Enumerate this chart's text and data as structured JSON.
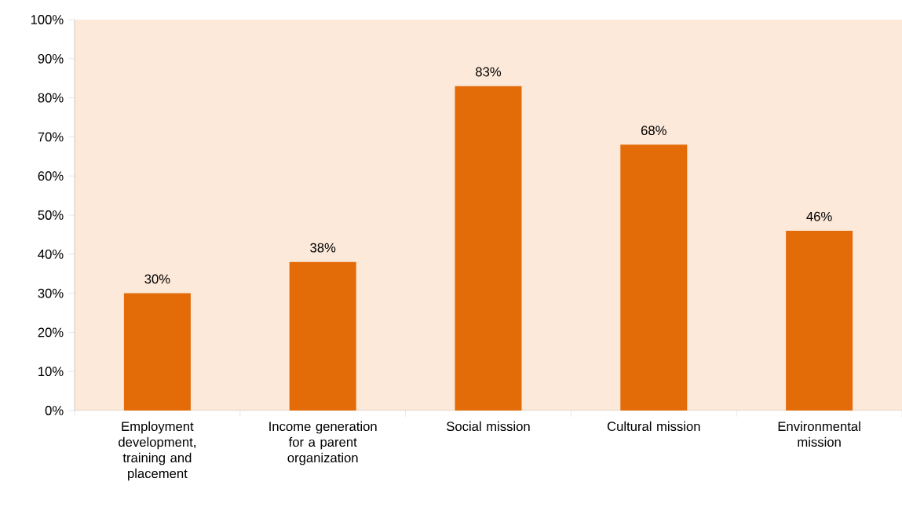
{
  "chart_data": {
    "type": "bar",
    "categories": [
      "Employment development, training and placement",
      "Income generation for a parent organization",
      "Social mission",
      "Cultural mission",
      "Environmental mission"
    ],
    "values": [
      30,
      38,
      83,
      68,
      46
    ],
    "value_labels": [
      "30%",
      "38%",
      "83%",
      "68%",
      "46%"
    ],
    "color": "#e36c09",
    "ylim": [
      0,
      100
    ],
    "yticks": [
      {
        "value": 0,
        "label": "0%"
      },
      {
        "value": 10,
        "label": "10%"
      },
      {
        "value": 20,
        "label": "20%"
      },
      {
        "value": 30,
        "label": "30%"
      },
      {
        "value": 40,
        "label": "40%"
      },
      {
        "value": 50,
        "label": "50%"
      },
      {
        "value": 60,
        "label": "60%"
      },
      {
        "value": 70,
        "label": "70%"
      },
      {
        "value": 80,
        "label": "80%"
      },
      {
        "value": 90,
        "label": "90%"
      },
      {
        "value": 100,
        "label": "100%"
      }
    ],
    "grid": false
  }
}
